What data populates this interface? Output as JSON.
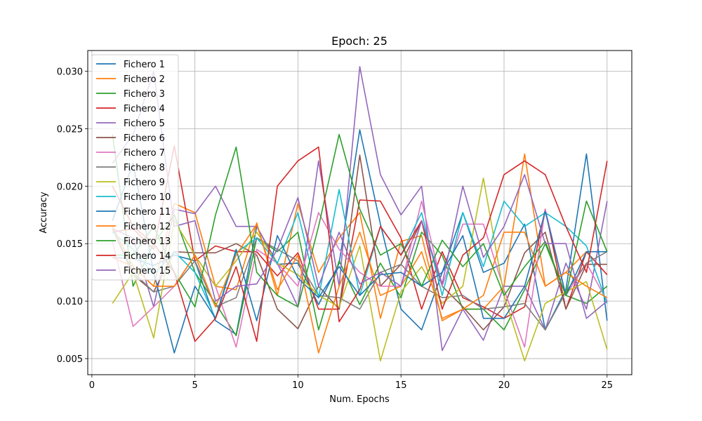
{
  "chart_data": {
    "type": "line",
    "title": "Epoch: 25",
    "xlabel": "Num. Epochs",
    "ylabel": "Accuracy",
    "xlim": [
      -0.2,
      26.2
    ],
    "ylim": [
      0.0036,
      0.0318
    ],
    "x_ticks": [
      0,
      5,
      10,
      15,
      20,
      25
    ],
    "x_tick_labels": [
      "0",
      "5",
      "10",
      "15",
      "20",
      "25"
    ],
    "y_ticks": [
      0.005,
      0.01,
      0.015,
      0.02,
      0.025,
      0.03
    ],
    "y_tick_labels": [
      "0.005",
      "0.010",
      "0.015",
      "0.020",
      "0.025",
      "0.030"
    ],
    "grid": true,
    "legend_position": "top-left",
    "x": [
      1,
      2,
      3,
      4,
      5,
      6,
      7,
      8,
      9,
      10,
      11,
      12,
      13,
      14,
      15,
      16,
      17,
      18,
      19,
      20,
      21,
      22,
      23,
      24,
      25
    ],
    "series": [
      {
        "name": "Fichero 1",
        "color": "#1f77b4",
        "values": [
          0.0138,
          0.0137,
          0.0131,
          0.014,
          0.0135,
          0.0083,
          0.0071,
          0.0165,
          0.0132,
          0.0133,
          0.0097,
          0.0133,
          0.0249,
          0.0167,
          0.0093,
          0.0075,
          0.0125,
          0.0177,
          0.0125,
          0.0133,
          0.0167,
          0.0075,
          0.011,
          0.0228,
          0.0083
        ]
      },
      {
        "name": "Fichero 2",
        "color": "#ff7f0e",
        "values": [
          0.0138,
          0.013,
          0.0113,
          0.0185,
          0.0177,
          0.0113,
          0.011,
          0.0168,
          0.0105,
          0.0185,
          0.0125,
          0.0155,
          0.0177,
          0.0085,
          0.0152,
          0.0157,
          0.0083,
          0.0093,
          0.0093,
          0.0113,
          0.0228,
          0.0113,
          0.0125,
          0.0143,
          0.0123
        ]
      },
      {
        "name": "Fichero 3",
        "color": "#2ca02c",
        "values": [
          0.0245,
          0.0113,
          0.015,
          0.0175,
          0.0125,
          0.0098,
          0.007,
          0.0155,
          0.0143,
          0.016,
          0.0075,
          0.0135,
          0.0097,
          0.0133,
          0.0103,
          0.016,
          0.014,
          0.0093,
          0.0093,
          0.0075,
          0.011,
          0.015,
          0.0105,
          0.0098,
          0.0113
        ]
      },
      {
        "name": "Fichero 4",
        "color": "#d62728",
        "values": [
          0.016,
          0.0163,
          0.0145,
          0.0235,
          0.0135,
          0.0148,
          0.0143,
          0.0143,
          0.0122,
          0.0142,
          0.0093,
          0.0093,
          0.0188,
          0.0187,
          0.0155,
          0.0093,
          0.0143,
          0.0103,
          0.0095,
          0.0085,
          0.0095,
          0.018,
          0.0093,
          0.0143,
          0.0123
        ]
      },
      {
        "name": "Fichero 5",
        "color": "#9467bd",
        "values": [
          0.0163,
          0.0155,
          0.0095,
          0.018,
          0.0176,
          0.02,
          0.0165,
          0.0165,
          0.0133,
          0.0095,
          0.0222,
          0.0113,
          0.0304,
          0.021,
          0.0175,
          0.02,
          0.0057,
          0.0093,
          0.0066,
          0.0113,
          0.0113,
          0.0075,
          0.0133,
          0.0093,
          0.0187
        ]
      },
      {
        "name": "Fichero 6",
        "color": "#8c564b",
        "values": [
          0.0163,
          0.0123,
          0.0108,
          0.0143,
          0.0142,
          0.0142,
          0.015,
          0.014,
          0.0093,
          0.0076,
          0.0113,
          0.0093,
          0.0227,
          0.0113,
          0.0132,
          0.017,
          0.0113,
          0.0095,
          0.0075,
          0.0095,
          0.0142,
          0.016,
          0.0093,
          0.0132,
          0.0132
        ]
      },
      {
        "name": "Fichero 7",
        "color": "#e377c2",
        "values": [
          0.0152,
          0.0078,
          0.0095,
          0.0113,
          0.014,
          0.0113,
          0.006,
          0.0145,
          0.0133,
          0.0113,
          0.0177,
          0.0145,
          0.0125,
          0.0113,
          0.0113,
          0.0187,
          0.0113,
          0.0167,
          0.0167,
          0.011,
          0.006,
          0.018,
          0.0105,
          0.0133,
          0.01
        ]
      },
      {
        "name": "Fichero 8",
        "color": "#7f7f7f",
        "values": [
          0.0163,
          0.0125,
          0.0108,
          0.0113,
          0.0135,
          0.0095,
          0.0103,
          0.0155,
          0.0145,
          0.0135,
          0.0105,
          0.0103,
          0.0093,
          0.0125,
          0.0132,
          0.0113,
          0.0103,
          0.0105,
          0.0093,
          0.0095,
          0.0098,
          0.0075,
          0.0108,
          0.0133,
          0.0143
        ]
      },
      {
        "name": "Fichero 9",
        "color": "#bcbd22",
        "values": [
          0.0098,
          0.0125,
          0.0068,
          0.017,
          0.014,
          0.0113,
          0.0135,
          0.016,
          0.0133,
          0.0123,
          0.0105,
          0.0095,
          0.0148,
          0.0048,
          0.0108,
          0.013,
          0.0098,
          0.0113,
          0.0207,
          0.0105,
          0.0048,
          0.0098,
          0.0108,
          0.0117,
          0.0058
        ]
      },
      {
        "name": "Fichero 10",
        "color": "#17becf",
        "values": [
          0.016,
          0.0145,
          0.0123,
          0.0143,
          0.0125,
          0.0085,
          0.0142,
          0.0155,
          0.0133,
          0.0177,
          0.0103,
          0.0197,
          0.0105,
          0.0165,
          0.014,
          0.0177,
          0.0105,
          0.0177,
          0.013,
          0.0187,
          0.0165,
          0.0177,
          0.0165,
          0.0148,
          0.0098
        ]
      },
      {
        "name": "Fichero 11",
        "color": "#1f77b4",
        "values": [
          0.017,
          0.022,
          0.0125,
          0.0055,
          0.0113,
          0.0085,
          0.0145,
          0.0083,
          0.0157,
          0.012,
          0.0103,
          0.013,
          0.0105,
          0.0123,
          0.0125,
          0.0113,
          0.0125,
          0.0157,
          0.0085,
          0.0085,
          0.0113,
          0.0178,
          0.0105,
          0.0143,
          0.0143
        ]
      },
      {
        "name": "Fichero 12",
        "color": "#ff7f0e",
        "values": [
          0.0165,
          0.013,
          0.0113,
          0.0113,
          0.014,
          0.0095,
          0.014,
          0.0167,
          0.011,
          0.014,
          0.0055,
          0.0113,
          0.016,
          0.0105,
          0.0113,
          0.0143,
          0.0085,
          0.0093,
          0.0105,
          0.016,
          0.016,
          0.0113,
          0.0125,
          0.0113,
          0.0103
        ]
      },
      {
        "name": "Fichero 13",
        "color": "#2ca02c",
        "values": [
          0.014,
          0.014,
          0.0165,
          0.0125,
          0.0095,
          0.0175,
          0.0234,
          0.0125,
          0.0105,
          0.0095,
          0.0165,
          0.0245,
          0.018,
          0.014,
          0.015,
          0.0113,
          0.0153,
          0.013,
          0.015,
          0.0105,
          0.013,
          0.0152,
          0.0105,
          0.0187,
          0.0143
        ]
      },
      {
        "name": "Fichero 14",
        "color": "#d62728",
        "values": [
          0.02,
          0.0165,
          0.015,
          0.0125,
          0.0065,
          0.0085,
          0.013,
          0.0065,
          0.02,
          0.0222,
          0.0234,
          0.0082,
          0.011,
          0.0165,
          0.014,
          0.017,
          0.0093,
          0.014,
          0.0155,
          0.021,
          0.0222,
          0.021,
          0.0165,
          0.0125,
          0.0222
        ]
      },
      {
        "name": "Fichero 15",
        "color": "#9467bd",
        "values": [
          0.022,
          0.0245,
          0.03,
          0.0165,
          0.017,
          0.01,
          0.0113,
          0.0115,
          0.0145,
          0.019,
          0.0113,
          0.016,
          0.0115,
          0.0125,
          0.0113,
          0.017,
          0.0115,
          0.02,
          0.0138,
          0.0165,
          0.021,
          0.015,
          0.015,
          0.0085,
          0.01
        ]
      }
    ]
  }
}
